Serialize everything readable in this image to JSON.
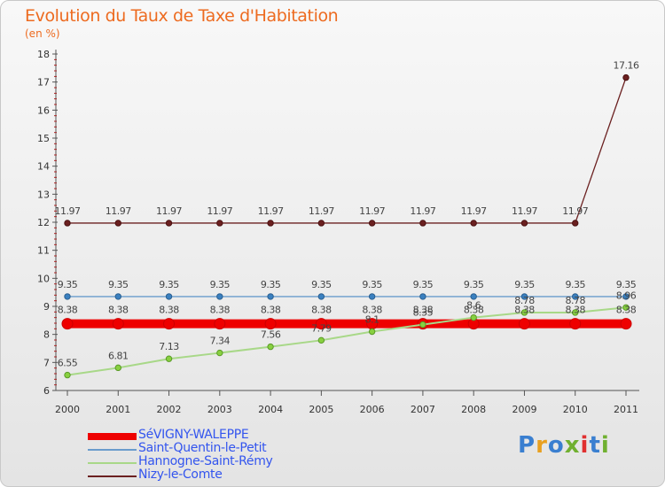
{
  "header": {
    "title": "Evolution du Taux de Taxe d'Habitation",
    "unit": "(en %)"
  },
  "brand": {
    "text": "Proxiti",
    "colors": [
      "#3a7fd0",
      "#e8a020",
      "#3a7fd0",
      "#70b030",
      "#e03030",
      "#3a7fd0",
      "#70b030"
    ]
  },
  "chart_data": {
    "type": "line",
    "title": "Evolution du Taux de Taxe d'Habitation",
    "ylabel": "(en %)",
    "xlabel": "",
    "x": [
      "2000",
      "2001",
      "2002",
      "2003",
      "2004",
      "2005",
      "2006",
      "2007",
      "2008",
      "2009",
      "2010",
      "2011"
    ],
    "ylim": [
      6,
      18
    ],
    "yticks": [
      "6",
      "7",
      "8",
      "9",
      "10",
      "11",
      "12",
      "13",
      "14",
      "15",
      "16",
      "17",
      "18"
    ],
    "grid": false,
    "legend_position": "bottom-left",
    "series": [
      {
        "name": "Nizy-le-Comte",
        "color": "#6b2020",
        "values": [
          11.97,
          11.97,
          11.97,
          11.97,
          11.97,
          11.97,
          11.97,
          11.97,
          11.97,
          11.97,
          11.97,
          17.16
        ],
        "labels": [
          "11.97",
          "11.97",
          "11.97",
          "11.97",
          "11.97",
          "11.97",
          "11.97",
          "11.97",
          "11.97",
          "11.97",
          "11.97",
          "17.16"
        ]
      },
      {
        "name": "Saint-Quentin-le-Petit",
        "color": "#6a9ccc",
        "values": [
          9.35,
          9.35,
          9.35,
          9.35,
          9.35,
          9.35,
          9.35,
          9.35,
          9.35,
          9.35,
          9.35,
          9.35
        ],
        "labels": [
          "9.35",
          "9.35",
          "9.35",
          "9.35",
          "9.35",
          "9.35",
          "9.35",
          "9.35",
          "9.35",
          "9.35",
          "9.35",
          "9.35"
        ]
      },
      {
        "name": "Hannogne-Saint-Rémy",
        "color": "#a8d888",
        "values": [
          6.55,
          6.81,
          7.13,
          7.34,
          7.56,
          7.79,
          8.1,
          8.35,
          8.6,
          8.78,
          8.78,
          8.96
        ],
        "labels": [
          "6.55",
          "6.81",
          "7.13",
          "7.34",
          "7.56",
          "7.79",
          "8.1",
          "8.35",
          "8.6",
          "8.78",
          "8.78",
          "8.96"
        ]
      },
      {
        "name": "SéVIGNY-WALEPPE",
        "color": "#ee0000",
        "values": [
          8.38,
          8.38,
          8.38,
          8.38,
          8.38,
          8.38,
          8.38,
          8.38,
          8.38,
          8.38,
          8.38,
          8.38
        ],
        "labels": [
          "8.38",
          "8.38",
          "8.38",
          "8.38",
          "8.38",
          "8.38",
          "8.38",
          "8.38",
          "8.38",
          "8.38",
          "8.38",
          "8.38"
        ]
      }
    ],
    "legend_order": [
      "SéVIGNY-WALEPPE",
      "Saint-Quentin-le-Petit",
      "Hannogne-Saint-Rémy",
      "Nizy-le-Comte"
    ]
  }
}
